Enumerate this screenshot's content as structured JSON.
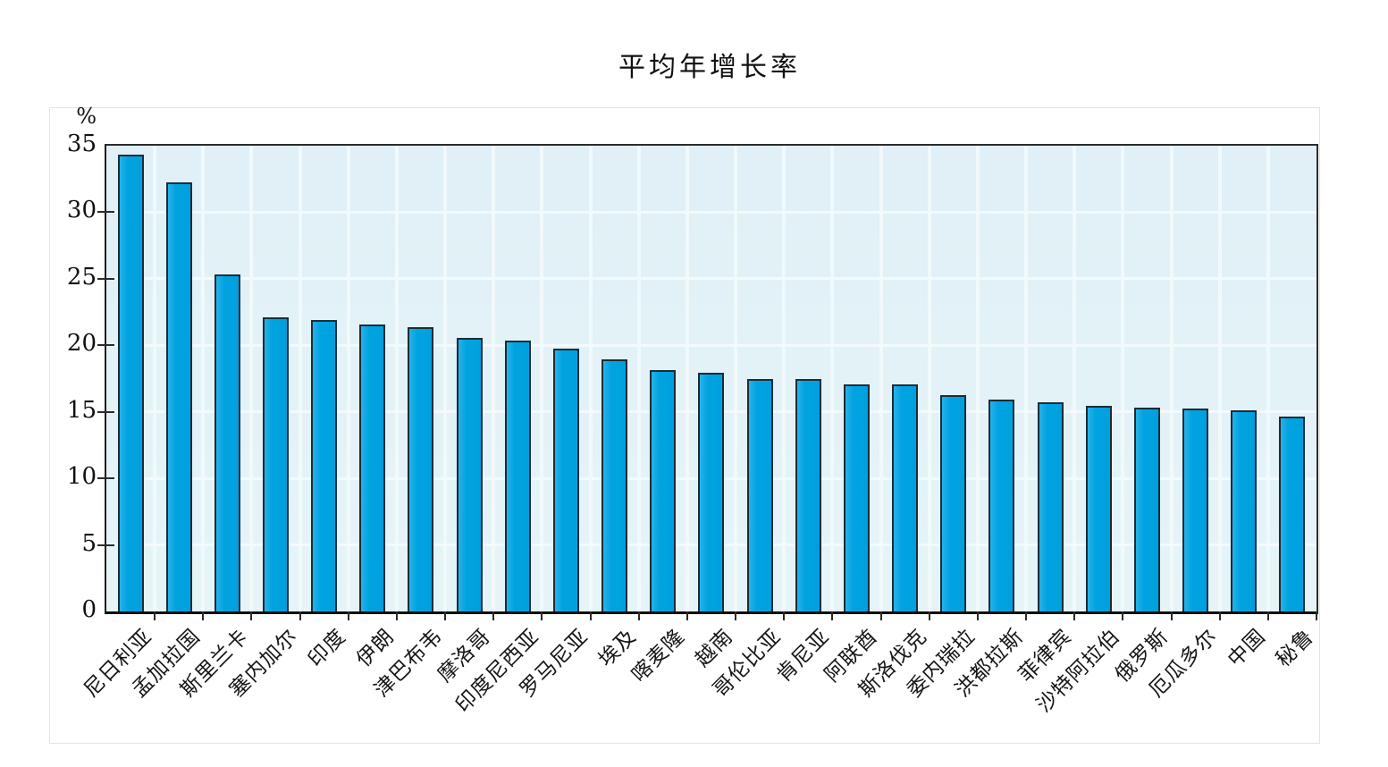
{
  "title": "平均年增长率",
  "y_axis": {
    "unit_label": "%"
  },
  "chart_data": {
    "type": "bar",
    "title": "平均年增长率",
    "xlabel": "",
    "ylabel": "%",
    "ylim": [
      0,
      35
    ],
    "y_ticks": [
      0,
      5,
      10,
      15,
      20,
      25,
      30,
      35
    ],
    "grid": true,
    "legend": "none",
    "categories": [
      "尼日利亚",
      "孟加拉国",
      "斯里兰卡",
      "塞内加尔",
      "印度",
      "伊朗",
      "津巴布韦",
      "摩洛哥",
      "印度尼西亚",
      "罗马尼亚",
      "埃及",
      "喀麦隆",
      "越南",
      "哥伦比亚",
      "肯尼亚",
      "阿联酋",
      "斯洛伐克",
      "委内瑞拉",
      "洪都拉斯",
      "菲律宾",
      "沙特阿拉伯",
      "俄罗斯",
      "厄瓜多尔",
      "中国",
      "秘鲁"
    ],
    "values": [
      34.2,
      32.1,
      25.2,
      22.0,
      21.8,
      21.4,
      21.2,
      20.4,
      20.2,
      19.6,
      18.8,
      18.0,
      17.8,
      17.3,
      17.3,
      16.9,
      16.9,
      16.1,
      15.8,
      15.6,
      15.3,
      15.2,
      15.1,
      15.0,
      14.5
    ],
    "colors": {
      "bar_fill": "#00a3e0",
      "bar_border": "#1c2c38",
      "plot_background": "#e4f2f7",
      "gridline": "#f4fbfd",
      "axis": "#1e1e1e",
      "text": "#111111"
    }
  }
}
